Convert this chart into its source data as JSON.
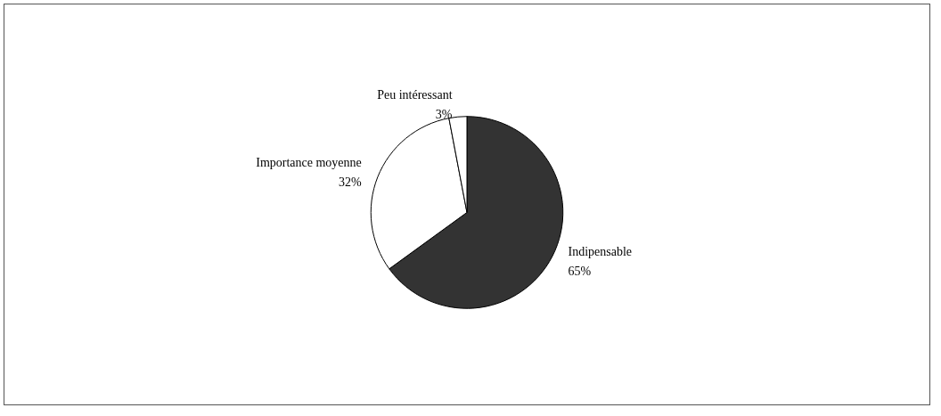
{
  "chart_data": {
    "type": "pie",
    "categories": [
      "Indipensable",
      "Importance moyenne",
      "Peu intéressant"
    ],
    "values": [
      65,
      32,
      3
    ],
    "colors": [
      "#333333",
      "#ffffff",
      "#ffffff"
    ],
    "legend": false,
    "value_labels": [
      "65%",
      "32%",
      "3%"
    ]
  }
}
